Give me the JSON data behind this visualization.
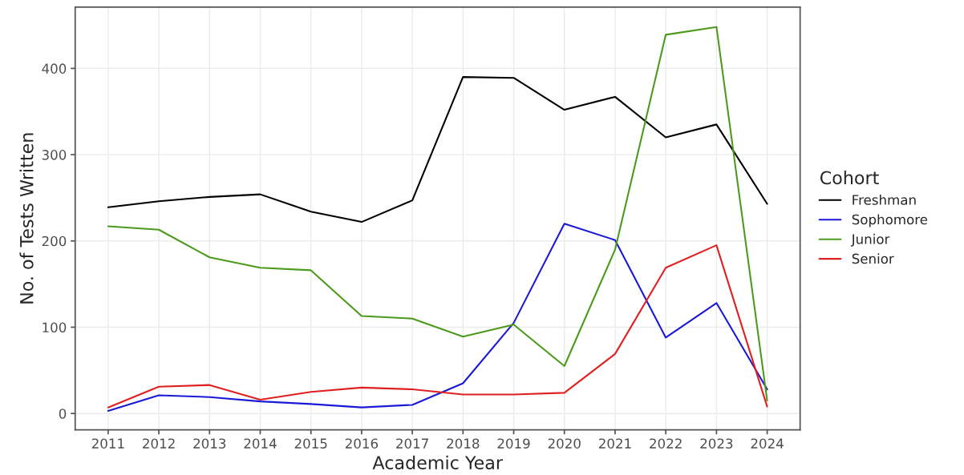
{
  "chart_data": {
    "type": "line",
    "xlabel": "Academic Year",
    "ylabel": "No. of Tests Written",
    "legend_title": "Cohort",
    "legend": "right",
    "categories": [
      "2011",
      "2012",
      "2013",
      "2014",
      "2015",
      "2016",
      "2017",
      "2018",
      "2019",
      "2020",
      "2021",
      "2022",
      "2023",
      "2024"
    ],
    "series": [
      {
        "name": "Freshman",
        "color": "#000000",
        "values": [
          239,
          246,
          251,
          254,
          234,
          222,
          247,
          390,
          389,
          352,
          367,
          320,
          335,
          243
        ]
      },
      {
        "name": "Sophomore",
        "color": "#1a1ad6",
        "values": [
          3,
          21,
          19,
          14,
          11,
          7,
          10,
          35,
          105,
          220,
          201,
          88,
          128,
          28
        ]
      },
      {
        "name": "Junior",
        "color": "#4c9a1c",
        "values": [
          217,
          213,
          181,
          169,
          166,
          113,
          110,
          89,
          103,
          55,
          190,
          439,
          448,
          15
        ]
      },
      {
        "name": "Senior",
        "color": "#e02020",
        "values": [
          7,
          31,
          33,
          16,
          25,
          30,
          28,
          22,
          22,
          24,
          69,
          169,
          195,
          8
        ]
      }
    ],
    "ylim": [
      -19,
      471
    ],
    "yticks": [
      0,
      100,
      200,
      300,
      400
    ],
    "grid": true
  }
}
